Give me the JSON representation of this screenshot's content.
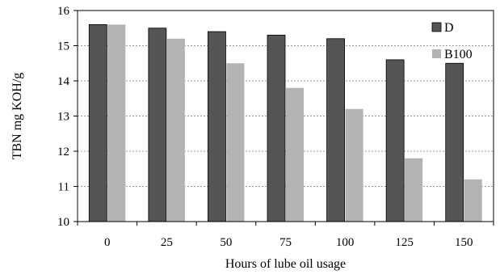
{
  "chart_data": {
    "type": "bar",
    "categories": [
      "0",
      "25",
      "50",
      "75",
      "100",
      "125",
      "150"
    ],
    "series": [
      {
        "name": "D",
        "color": "#555555",
        "values": [
          15.6,
          15.5,
          15.4,
          15.3,
          15.2,
          14.6,
          14.5
        ]
      },
      {
        "name": "B100",
        "color": "#b3b3b3",
        "values": [
          15.6,
          15.2,
          14.5,
          13.8,
          13.2,
          11.8,
          11.2
        ]
      }
    ],
    "xlabel": "Hours of lube oil usage",
    "ylabel": "TBN mg KOH/g",
    "ylim": [
      10,
      16
    ],
    "yticks": [
      "10",
      "11",
      "12",
      "13",
      "14",
      "15",
      "16"
    ],
    "grid": "horizontal-dashed",
    "legend": "top-right"
  }
}
